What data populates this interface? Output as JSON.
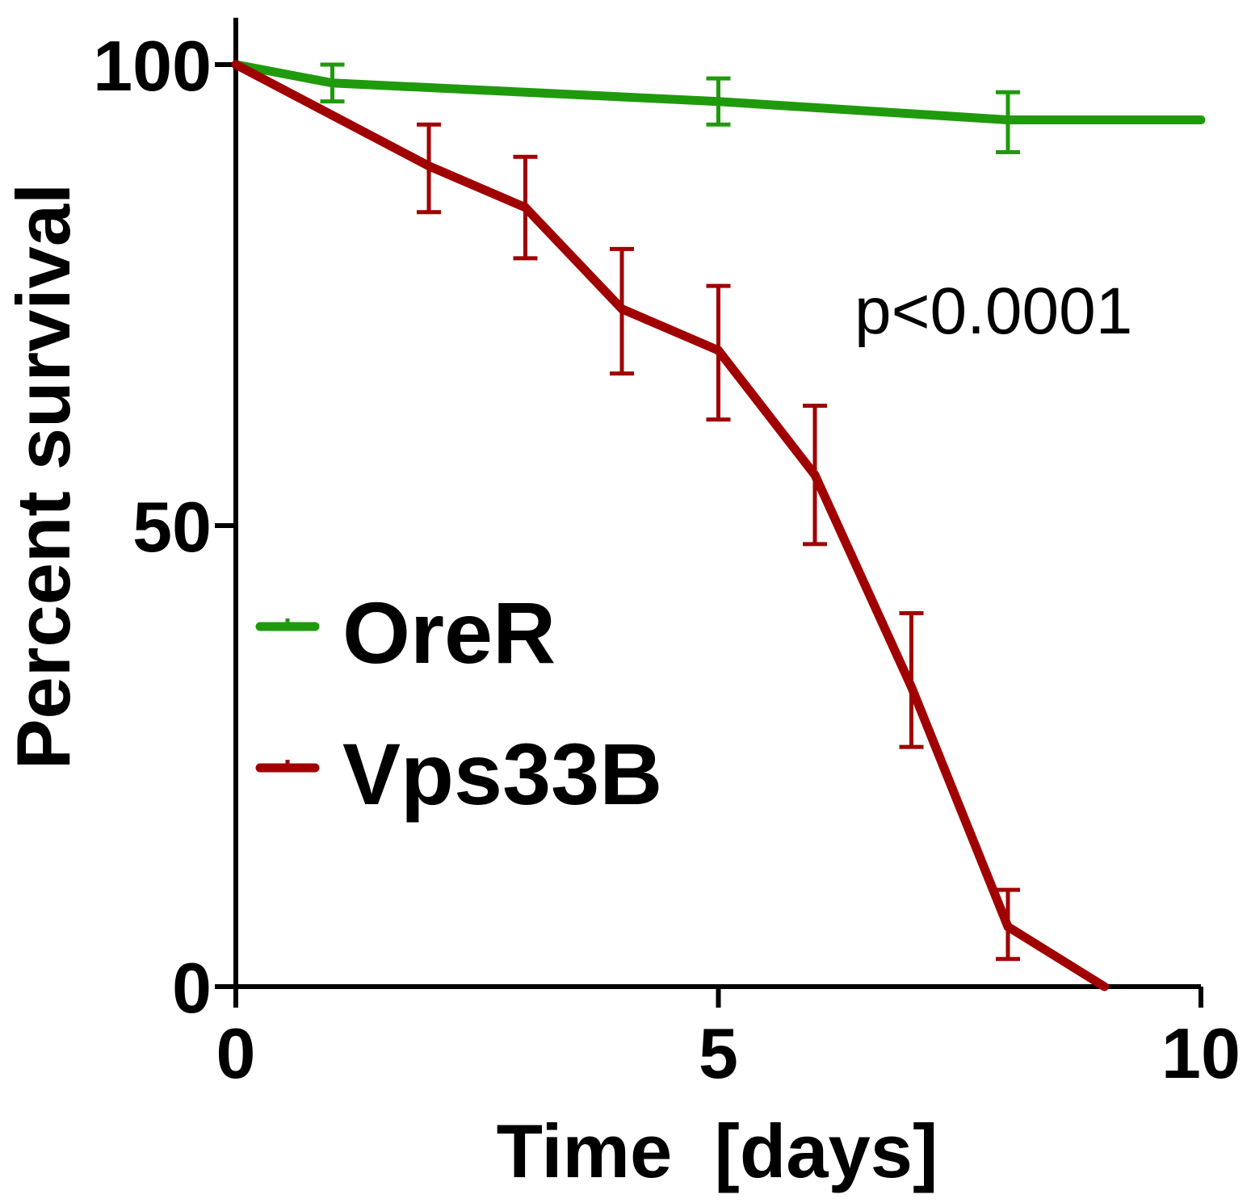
{
  "chart_data": {
    "type": "line",
    "title": "",
    "xlabel": "Time  [days]",
    "ylabel": "Percent survival",
    "xlim": [
      0,
      10
    ],
    "ylim": [
      0,
      100
    ],
    "x_ticks": [
      0,
      5,
      10
    ],
    "y_ticks": [
      0,
      50,
      100
    ],
    "x_tick_labels": [
      "0",
      "5",
      "10"
    ],
    "y_tick_labels": [
      "0",
      "50",
      "100"
    ],
    "grid": false,
    "legend_position": "middle-left",
    "annotation": "p<0.0001",
    "series": [
      {
        "name": "OreR",
        "color": "#1f9a0c",
        "points": [
          {
            "x": 0,
            "y": 100
          },
          {
            "x": 1,
            "y": 98,
            "err_low": 96,
            "err_high": 100
          },
          {
            "x": 5,
            "y": 96,
            "err_low": 93.5,
            "err_high": 98.5
          },
          {
            "x": 8,
            "y": 94,
            "err_low": 90.5,
            "err_high": 97
          },
          {
            "x": 10,
            "y": 94
          }
        ]
      },
      {
        "name": "Vps33B",
        "color": "#a00000",
        "points": [
          {
            "x": 0,
            "y": 100
          },
          {
            "x": 2,
            "y": 89,
            "err_low": 84,
            "err_high": 93.5
          },
          {
            "x": 3,
            "y": 84.5,
            "err_low": 79,
            "err_high": 90
          },
          {
            "x": 4,
            "y": 73.5,
            "err_low": 66.5,
            "err_high": 80
          },
          {
            "x": 5,
            "y": 69,
            "err_low": 61.5,
            "err_high": 76
          },
          {
            "x": 6,
            "y": 55.5,
            "err_low": 48,
            "err_high": 63
          },
          {
            "x": 7,
            "y": 32.5,
            "err_low": 26,
            "err_high": 40.5
          },
          {
            "x": 8,
            "y": 6.5,
            "err_low": 3,
            "err_high": 10.5
          },
          {
            "x": 9,
            "y": 0
          }
        ]
      }
    ]
  }
}
